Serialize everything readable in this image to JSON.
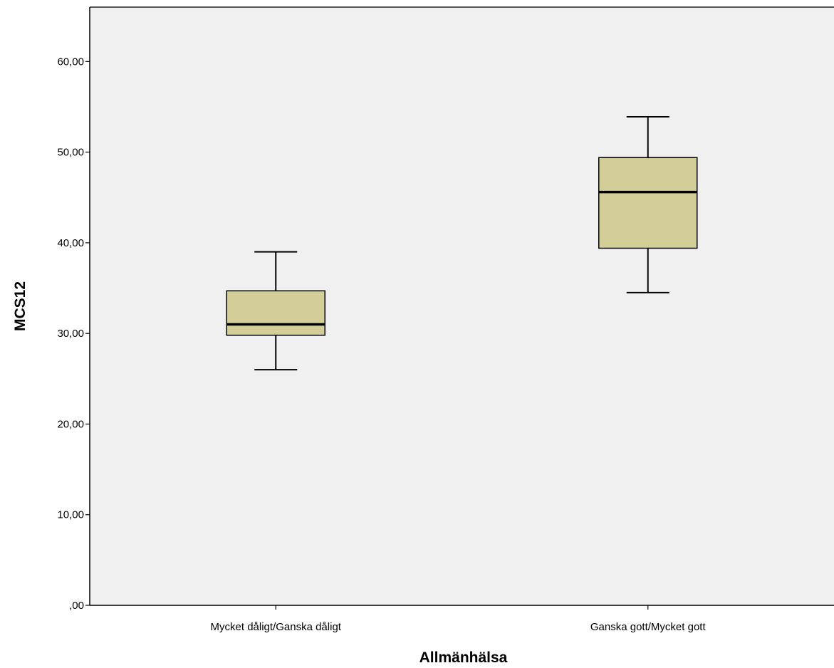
{
  "chart_data": {
    "type": "boxplot",
    "xlabel": "Allmänhälsa",
    "ylabel": "MCS12",
    "ylim": [
      0,
      66
    ],
    "grid": false,
    "yticks": [
      {
        "value": 0,
        "label": ",00"
      },
      {
        "value": 10,
        "label": "10,00"
      },
      {
        "value": 20,
        "label": "20,00"
      },
      {
        "value": 30,
        "label": "30,00"
      },
      {
        "value": 40,
        "label": "40,00"
      },
      {
        "value": 50,
        "label": "50,00"
      },
      {
        "value": 60,
        "label": "60,00"
      }
    ],
    "categories": [
      "Mycket dåligt/Ganska dåligt",
      "Ganska gott/Mycket gott"
    ],
    "boxes": [
      {
        "category": "Mycket dåligt/Ganska dåligt",
        "min": 26.0,
        "q1": 29.8,
        "median": 31.0,
        "q3": 34.7,
        "max": 39.0
      },
      {
        "category": "Ganska gott/Mycket gott",
        "min": 34.5,
        "q1": 39.4,
        "median": 45.6,
        "q3": 49.4,
        "max": 53.9
      }
    ],
    "colors": {
      "plot_background": "#f0f0f0",
      "box_fill": "#d3ce97",
      "stroke": "#000000"
    }
  }
}
